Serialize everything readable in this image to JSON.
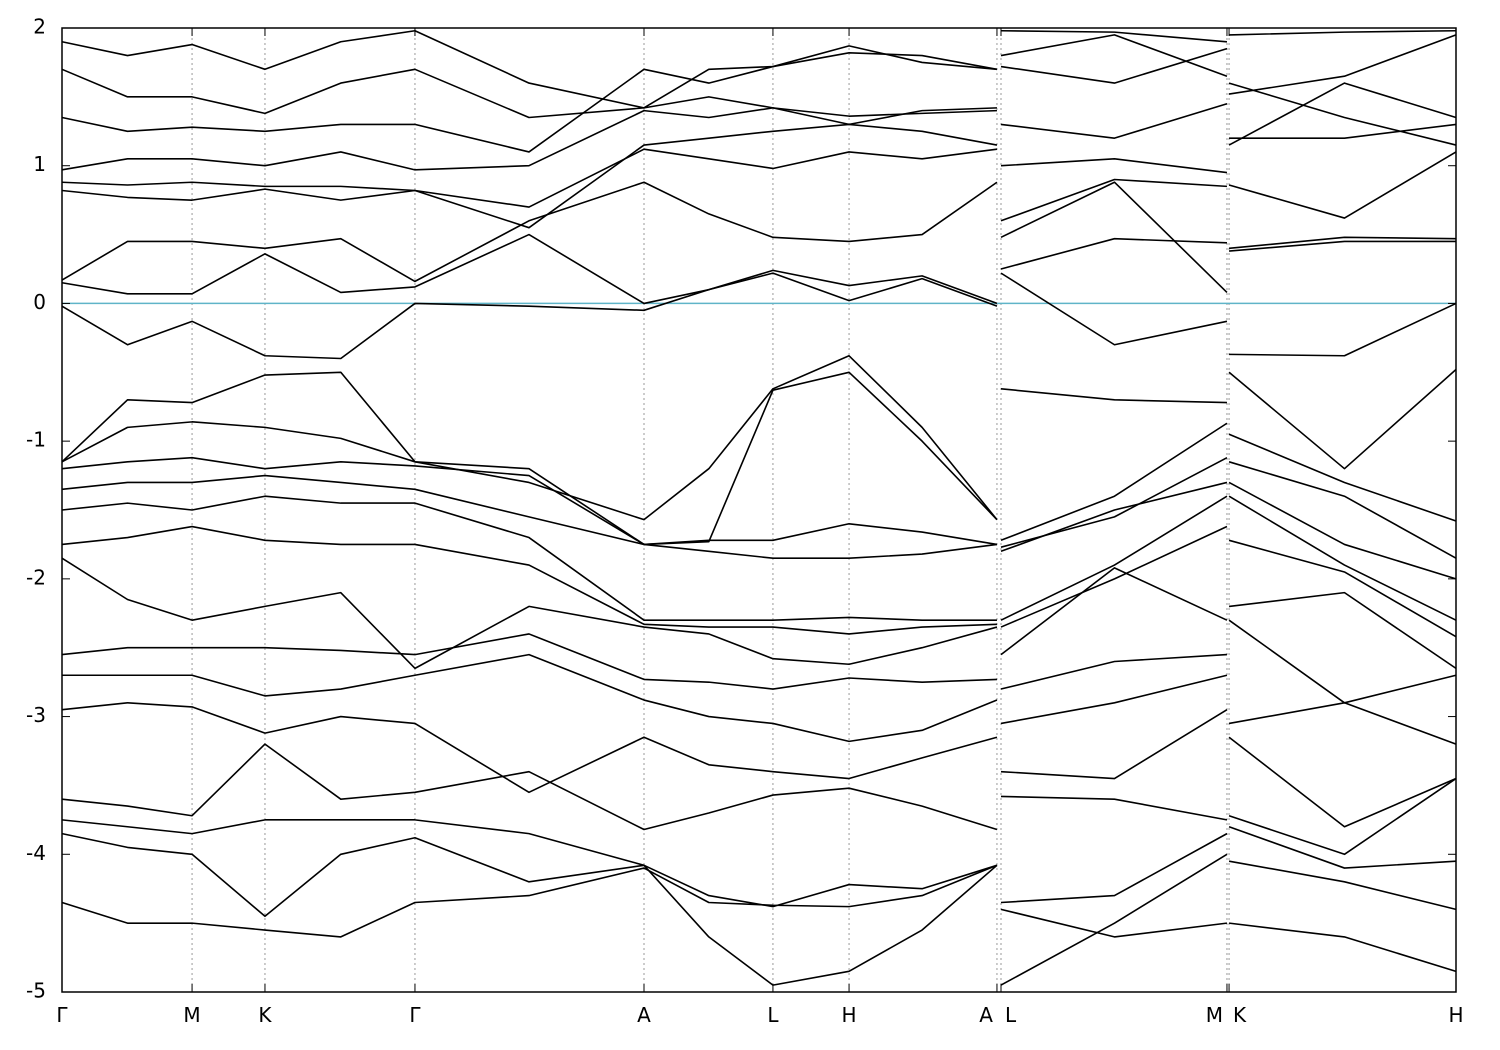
{
  "chart_data": {
    "type": "line",
    "x": [
      0,
      0.047,
      0.0933,
      0.1456,
      0.2,
      0.2532,
      0.335,
      0.4175,
      0.464,
      0.51,
      0.5646,
      0.617,
      0.6707,
      0.672,
      0.6736,
      0.755,
      0.8357,
      0.836,
      0.8372,
      0.92,
      1
    ],
    "xlim": [
      0,
      1
    ],
    "xticks": [
      {
        "value": 0,
        "label": "Γ"
      },
      {
        "value": 0.0933,
        "label": "M"
      },
      {
        "value": 0.1456,
        "label": "K"
      },
      {
        "value": 0.2532,
        "label": "Γ"
      },
      {
        "value": 0.4175,
        "label": "A"
      },
      {
        "value": 0.51,
        "label": "L"
      },
      {
        "value": 0.5646,
        "label": "H"
      },
      {
        "value": 0.6707,
        "label": "A"
      },
      {
        "value": 0.6736,
        "label": "L"
      },
      {
        "value": 0.8357,
        "label": "M"
      },
      {
        "value": 0.8372,
        "label": "K"
      },
      {
        "value": 1,
        "label": "H"
      }
    ],
    "ylim": [
      -5,
      2
    ],
    "yticks": [
      -5,
      -4,
      -3,
      -2,
      -1,
      0,
      1,
      2
    ],
    "grid_x": true,
    "hline": 0,
    "hline_color": "#5fb4c8",
    "series": [
      {
        "color": "#000000",
        "values": [
          -0.02,
          -0.3,
          -0.13,
          -0.38,
          -0.4,
          0.0,
          -0.02,
          -0.05,
          0.1,
          0.22,
          0.02,
          0.18,
          -0.02,
          null,
          0.22,
          -0.3,
          -0.13,
          null,
          -0.37,
          -0.38,
          0.0
        ]
      },
      {
        "color": "#000000",
        "values": [
          0.15,
          0.07,
          0.07,
          0.36,
          0.08,
          0.12,
          0.5,
          0.0,
          0.1,
          0.24,
          0.13,
          0.2,
          0.0,
          null,
          0.25,
          0.47,
          0.44,
          null,
          0.38,
          0.45,
          0.45
        ]
      },
      {
        "color": "#000000",
        "values": [
          0.17,
          0.45,
          0.45,
          0.4,
          0.47,
          0.16,
          0.6,
          0.88,
          0.65,
          0.48,
          0.45,
          0.5,
          0.88,
          null,
          0.48,
          0.88,
          0.08,
          null,
          0.4,
          0.48,
          0.47
        ]
      },
      {
        "color": "#000000",
        "values": [
          0.82,
          0.77,
          0.75,
          0.83,
          0.75,
          0.82,
          0.7,
          1.12,
          1.05,
          0.98,
          1.1,
          1.05,
          1.12,
          null,
          0.6,
          0.9,
          0.85,
          null,
          0.86,
          0.62,
          1.1
        ]
      },
      {
        "color": "#000000",
        "values": [
          0.88,
          0.86,
          0.88,
          0.85,
          0.85,
          0.82,
          0.55,
          1.15,
          1.2,
          1.25,
          1.3,
          1.25,
          1.15,
          null,
          1.0,
          1.05,
          0.95,
          null,
          1.2,
          1.2,
          1.3
        ]
      },
      {
        "color": "#000000",
        "values": [
          0.97,
          1.05,
          1.05,
          1.0,
          1.1,
          0.97,
          1.0,
          1.4,
          1.35,
          1.42,
          1.36,
          1.38,
          1.4,
          null,
          1.3,
          1.2,
          1.45,
          null,
          1.15,
          1.6,
          1.35
        ]
      },
      {
        "color": "#000000",
        "values": [
          1.35,
          1.25,
          1.28,
          1.25,
          1.3,
          1.3,
          1.1,
          1.7,
          1.6,
          1.72,
          1.87,
          1.75,
          1.7,
          null,
          1.72,
          1.6,
          1.85,
          null,
          1.52,
          1.65,
          1.95
        ]
      },
      {
        "color": "#000000",
        "values": [
          1.7,
          1.5,
          1.5,
          1.38,
          1.6,
          1.7,
          1.35,
          1.42,
          1.5,
          1.42,
          1.3,
          1.4,
          1.42,
          null,
          1.8,
          1.95,
          1.65,
          null,
          1.6,
          1.35,
          1.15
        ]
      },
      {
        "color": "#000000",
        "values": [
          1.9,
          1.8,
          1.88,
          1.7,
          1.9,
          1.98,
          1.6,
          1.42,
          1.7,
          1.72,
          1.82,
          1.8,
          1.7,
          null,
          1.98,
          1.97,
          1.9,
          null,
          1.95,
          1.97,
          1.98
        ]
      },
      {
        "color": "#000000",
        "values": [
          -1.15,
          -0.7,
          -0.72,
          -0.52,
          -0.5,
          -1.15,
          -1.3,
          -1.57,
          -1.2,
          -0.62,
          -0.38,
          -0.9,
          -1.57,
          null,
          -0.62,
          -0.7,
          -0.72,
          null,
          -0.5,
          -1.2,
          -0.48
        ]
      },
      {
        "color": "#000000",
        "values": [
          -1.15,
          -0.9,
          -0.86,
          -0.9,
          -0.98,
          -1.15,
          -1.2,
          -1.75,
          -1.73,
          -0.63,
          -0.5,
          -1.0,
          -1.57,
          null,
          -1.72,
          -1.4,
          -0.87,
          null,
          -0.95,
          -1.3,
          -1.58
        ]
      },
      {
        "color": "#000000",
        "values": [
          -1.2,
          -1.15,
          -1.12,
          -1.2,
          -1.15,
          -1.18,
          -1.25,
          -1.75,
          -1.72,
          -1.72,
          -1.6,
          -1.66,
          -1.75,
          null,
          -1.77,
          -1.55,
          -1.12,
          null,
          -1.15,
          -1.4,
          -1.85
        ]
      },
      {
        "color": "#000000",
        "values": [
          -1.35,
          -1.3,
          -1.3,
          -1.25,
          -1.3,
          -1.35,
          -1.55,
          -1.75,
          -1.8,
          -1.85,
          -1.85,
          -1.82,
          -1.75,
          null,
          -1.8,
          -1.5,
          -1.3,
          null,
          -1.3,
          -1.75,
          -2.0
        ]
      },
      {
        "color": "#000000",
        "values": [
          -1.5,
          -1.45,
          -1.5,
          -1.4,
          -1.45,
          -1.45,
          -1.7,
          -2.3,
          -2.3,
          -2.3,
          -2.28,
          -2.3,
          -2.3,
          null,
          -2.3,
          -1.9,
          -1.4,
          null,
          -1.4,
          -1.9,
          -2.3
        ]
      },
      {
        "color": "#000000",
        "values": [
          -1.75,
          -1.7,
          -1.62,
          -1.72,
          -1.75,
          -1.75,
          -1.9,
          -2.33,
          -2.35,
          -2.35,
          -2.4,
          -2.35,
          -2.33,
          null,
          -2.35,
          -2.0,
          -1.62,
          null,
          -1.72,
          -1.95,
          -2.42
        ]
      },
      {
        "color": "#000000",
        "values": [
          -1.85,
          -2.15,
          -2.3,
          -2.2,
          -2.1,
          -2.65,
          -2.2,
          -2.35,
          -2.4,
          -2.58,
          -2.62,
          -2.5,
          -2.35,
          null,
          -2.55,
          -1.92,
          -2.3,
          null,
          -2.2,
          -2.1,
          -2.65
        ]
      },
      {
        "color": "#000000",
        "values": [
          -2.55,
          -2.5,
          -2.5,
          -2.5,
          -2.52,
          -2.55,
          -2.4,
          -2.73,
          -2.75,
          -2.8,
          -2.72,
          -2.75,
          -2.73,
          null,
          -2.8,
          -2.6,
          -2.55,
          null,
          -2.3,
          -2.9,
          -2.7
        ]
      },
      {
        "color": "#000000",
        "values": [
          -2.7,
          -2.7,
          -2.7,
          -2.85,
          -2.8,
          -2.7,
          -2.55,
          -2.88,
          -3.0,
          -3.05,
          -3.18,
          -3.1,
          -2.88,
          null,
          -3.05,
          -2.9,
          -2.7,
          null,
          -3.05,
          -2.9,
          -3.2
        ]
      },
      {
        "color": "#000000",
        "values": [
          -2.95,
          -2.9,
          -2.93,
          -3.12,
          -3.0,
          -3.05,
          -3.55,
          -3.15,
          -3.35,
          -3.4,
          -3.45,
          -3.3,
          -3.15,
          null,
          -3.4,
          -3.45,
          -2.95,
          null,
          -3.15,
          -3.8,
          -3.45
        ]
      },
      {
        "color": "#000000",
        "values": [
          -3.6,
          -3.65,
          -3.72,
          -3.2,
          -3.6,
          -3.55,
          -3.4,
          -3.82,
          -3.7,
          -3.57,
          -3.52,
          -3.65,
          -3.82,
          null,
          -3.58,
          -3.6,
          -3.75,
          null,
          -3.72,
          -4.0,
          -3.45
        ]
      },
      {
        "color": "#000000",
        "values": [
          -3.75,
          -3.8,
          -3.85,
          -3.75,
          -3.75,
          -3.75,
          -3.85,
          -4.08,
          -4.3,
          -4.38,
          -4.22,
          -4.25,
          -4.08,
          null,
          -4.35,
          -4.3,
          -3.85,
          null,
          -3.8,
          -4.1,
          -4.05
        ]
      },
      {
        "color": "#000000",
        "values": [
          -3.85,
          -3.95,
          -4.0,
          -4.45,
          -4.0,
          -3.88,
          -4.2,
          -4.08,
          -4.6,
          -4.95,
          -4.85,
          -4.55,
          -4.08,
          null,
          -4.95,
          -4.5,
          -4.0,
          null,
          -4.05,
          -4.2,
          -4.4
        ]
      },
      {
        "color": "#000000",
        "values": [
          -4.35,
          -4.5,
          -4.5,
          -4.55,
          -4.6,
          -4.35,
          -4.3,
          -4.1,
          -4.35,
          -4.37,
          -4.38,
          -4.3,
          -4.08,
          null,
          -4.4,
          -4.6,
          -4.5,
          null,
          -4.5,
          -4.6,
          -4.85
        ]
      }
    ]
  }
}
